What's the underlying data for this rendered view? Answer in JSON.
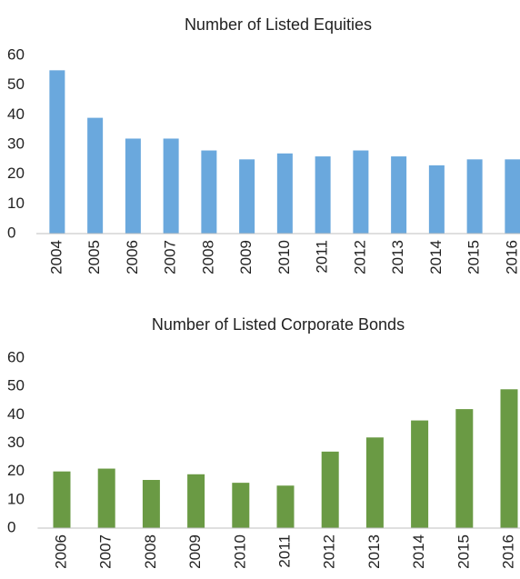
{
  "chart_data": [
    {
      "type": "bar",
      "title": "Number of Listed Equities",
      "categories": [
        "2004",
        "2005",
        "2006",
        "2007",
        "2008",
        "2009",
        "2010",
        "2011",
        "2012",
        "2013",
        "2014",
        "2015",
        "2016"
      ],
      "values": [
        55,
        39,
        32,
        32,
        28,
        25,
        27,
        26,
        28,
        26,
        23,
        25,
        25
      ],
      "color": "#6aa8dd",
      "ylim": [
        0,
        60
      ],
      "yticks": [
        0,
        10,
        20,
        30,
        40,
        50,
        60
      ]
    },
    {
      "type": "bar",
      "title": "Number of Listed Corporate Bonds",
      "categories": [
        "2006",
        "2007",
        "2008",
        "2009",
        "2010",
        "2011",
        "2012",
        "2013",
        "2014",
        "2015",
        "2016"
      ],
      "values": [
        20,
        21,
        17,
        19,
        16,
        15,
        27,
        32,
        38,
        42,
        49
      ],
      "color": "#6a9a44",
      "ylim": [
        0,
        60
      ],
      "yticks": [
        0,
        10,
        20,
        30,
        40,
        50,
        60
      ]
    }
  ]
}
